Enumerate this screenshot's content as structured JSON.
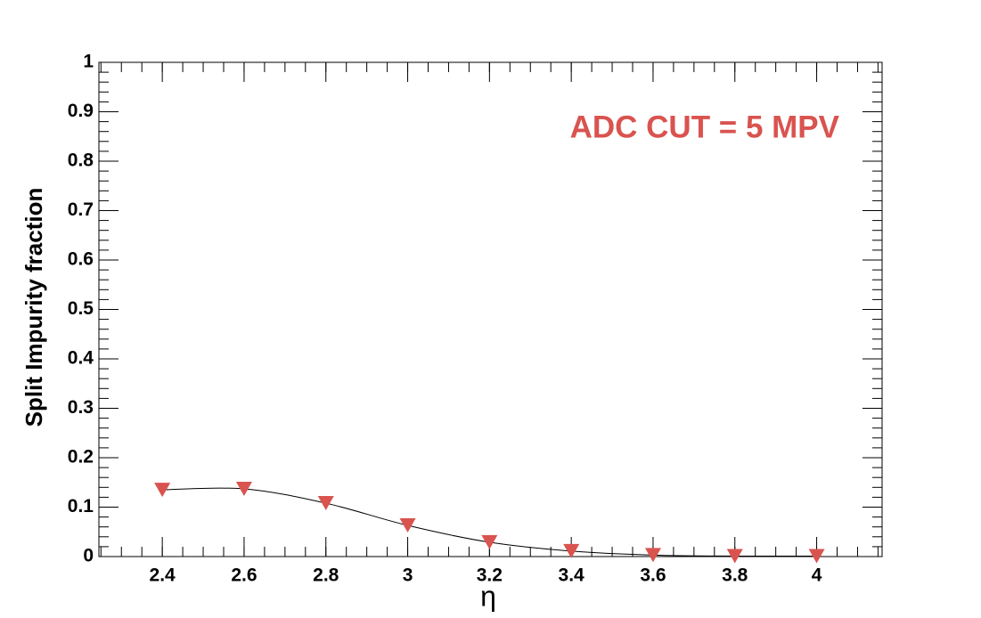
{
  "chart_data": {
    "type": "line",
    "annotation": "ADC CUT = 5 MPV",
    "x_label": "η",
    "y_label": "Split Impurity fraction",
    "x": [
      2.4,
      2.6,
      2.8,
      3.0,
      3.2,
      3.4,
      3.6,
      3.8,
      4.0
    ],
    "series": [
      {
        "values": [
          0.135,
          0.137,
          0.108,
          0.063,
          0.029,
          0.011,
          0.003,
          0.001,
          0.001
        ],
        "color": "#d9534f",
        "line_color": "#000000",
        "marker": "triangle-down"
      }
    ],
    "xlim": [
      2.245,
      4.16
    ],
    "ylim": [
      0,
      1
    ],
    "xticks": [
      2.4,
      2.6,
      2.8,
      3,
      3.2,
      3.4,
      3.6,
      3.8,
      4
    ],
    "yticks": [
      0,
      0.1,
      0.2,
      0.3,
      0.4,
      0.5,
      0.6,
      0.7,
      0.8,
      0.9,
      1
    ],
    "annotation_color": "#d9534f"
  }
}
